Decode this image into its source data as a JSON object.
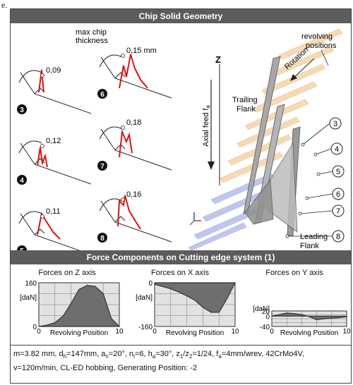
{
  "figure_label": "e.",
  "header_geometry": "Chip Solid Geometry",
  "header_forces": "Force Components on Cutting edge system (1)",
  "chips": [
    {
      "index": "3",
      "value": "0,09"
    },
    {
      "index": "4",
      "value": "0,12"
    },
    {
      "index": "5",
      "value": "0,11"
    },
    {
      "index": "6",
      "value": "0,15 mm"
    },
    {
      "index": "7",
      "value": "0,18"
    },
    {
      "index": "8",
      "value": "0,16"
    }
  ],
  "max_chip_label_line1": "max chip",
  "max_chip_label_line2": "thickness",
  "geometry_labels": {
    "z_axis": "Z",
    "axial_feed": "Axial feed  f",
    "axial_feed_sub": "a",
    "rotation": "Rotation",
    "revolving_line1": "revolving",
    "revolving_line2": "positions",
    "trailing_line1": "Trailing",
    "trailing_line2": "Flank",
    "leading_line1": "Leading",
    "leading_line2": "Flank",
    "positions": [
      "3",
      "4",
      "5",
      "6",
      "7",
      "8"
    ]
  },
  "chart_data": [
    {
      "type": "area",
      "title": "Forces on Z axis",
      "xlabel": "Revolving Position",
      "ylabel": "[daN]",
      "xlim": [
        0,
        10
      ],
      "ylim": [
        0,
        160
      ],
      "yticks": [
        "160",
        "0"
      ],
      "xticks": [
        "0",
        "10"
      ],
      "grid": true,
      "x": [
        0,
        1,
        2,
        3,
        4,
        5,
        6,
        7,
        8,
        9,
        10
      ],
      "y": [
        0,
        5,
        14,
        38,
        84,
        136,
        150,
        147,
        120,
        30,
        0
      ]
    },
    {
      "type": "area",
      "title": "Forces on X axis",
      "xlabel": "Revolving Position",
      "ylabel": "[daN]",
      "xlim": [
        0,
        10
      ],
      "ylim": [
        -160,
        0
      ],
      "yticks": [
        "0",
        "-160"
      ],
      "xticks": [
        "0",
        "10"
      ],
      "grid": true,
      "x": [
        0,
        1,
        2,
        3,
        4,
        5,
        6,
        7,
        8,
        9,
        10
      ],
      "y": [
        -6,
        -14,
        -22,
        -34,
        -48,
        -64,
        -90,
        -108,
        -108,
        -58,
        0
      ]
    },
    {
      "type": "area",
      "title": "Forces on Y axis",
      "xlabel": "Revolving Position",
      "ylabel": "[daN]",
      "xlim": [
        0,
        10
      ],
      "ylim": [
        -40,
        20
      ],
      "yticks": [
        "20",
        "0",
        "-40"
      ],
      "xticks": [
        "0",
        "10"
      ],
      "grid": true,
      "x": [
        0,
        1,
        2,
        3,
        4,
        5,
        6,
        7,
        8,
        9,
        10
      ],
      "y": [
        0,
        6,
        12,
        10,
        6,
        -2,
        -14,
        -10,
        -8,
        -6,
        -2
      ]
    }
  ],
  "params_line1_parts": [
    "m=3.82 mm, d",
    "h",
    "=147mm, a",
    "n",
    "=20°, n",
    "i",
    "=6, h",
    "a",
    "=30°, z",
    "1",
    "/z",
    "2",
    "=1/24, f",
    "a",
    "=4mm/wrev, 42CrMo4V,"
  ],
  "params_line2": "v=120m/min, CL-ED hobbing, Generating Position: -2"
}
